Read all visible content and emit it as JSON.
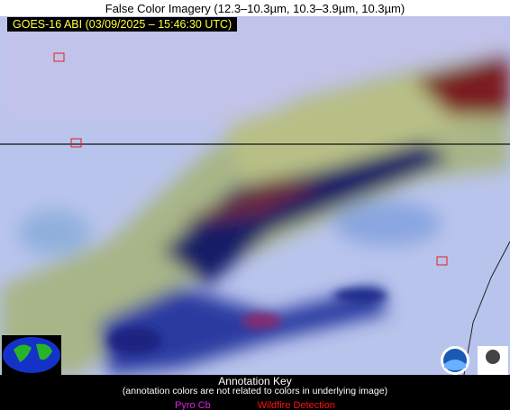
{
  "header": {
    "title": "False Color Imagery (12.3–10.3µm, 10.3–3.9µm, 10.3µm)",
    "timestamp": "GOES-16 ABI (03/09/2025 – 15:46:30 UTC)"
  },
  "annotation_key": {
    "title": "Annotation Key",
    "note": "(annotation colors are not related to colors in underlying image)",
    "items": [
      {
        "label": "Pyro Cb",
        "color": "#e020e0"
      },
      {
        "label": "Wildfire Detection",
        "color": "#ff1010"
      }
    ]
  }
}
